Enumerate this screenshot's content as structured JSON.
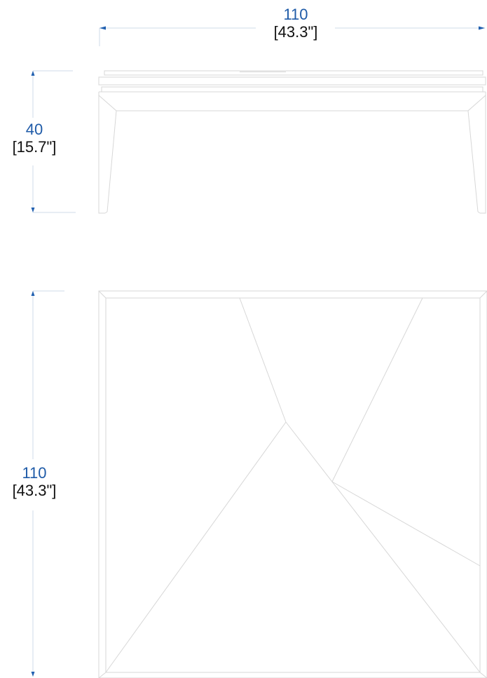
{
  "colors": {
    "metric": "#1f5ba8",
    "imperial": "#111111",
    "outline": "#d7d7d7",
    "dimension_line": "#cfdbe9",
    "arrow": "#2160b0"
  },
  "dimensions": {
    "width": {
      "metric": "110",
      "imperial": "[43.3\"]"
    },
    "height": {
      "metric": "40",
      "imperial": "[15.7\"]"
    },
    "depth": {
      "metric": "110",
      "imperial": "[43.3\"]"
    }
  }
}
